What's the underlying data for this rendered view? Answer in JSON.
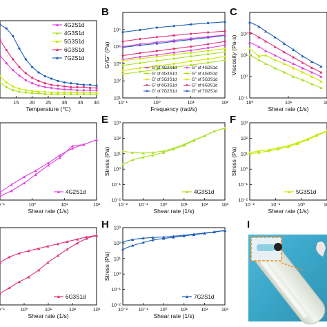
{
  "figure": {
    "background": "#ffffff",
    "panel_labels": [
      "B",
      "C",
      "E",
      "F",
      "H",
      "I"
    ]
  },
  "colors": {
    "4G2S1d": "#e040e0",
    "4G3S1d": "#a8e020",
    "5G3S1d": "#c8e800",
    "6G3S1d": "#e0307a",
    "7G2S1d": "#1f5fb8"
  },
  "chart_data": [
    {
      "id": "A",
      "type": "line",
      "xlabel": "Temperature (℃)",
      "ylabel": "",
      "xlim": [
        10,
        40
      ],
      "xticks": [
        "15",
        "20",
        "25",
        "30",
        "35",
        "40"
      ],
      "legend": [
        "4G2S1d",
        "4G3S1d",
        "5G3S1d",
        "6G3S1d",
        "7G2S1d"
      ],
      "legend_position": "top-right",
      "series": [
        {
          "name": "4G2S1d",
          "x": [
            10,
            12,
            14,
            16,
            18,
            20,
            22,
            24,
            26,
            28,
            30,
            32,
            34,
            36,
            38,
            40
          ],
          "values": [
            0.55,
            0.45,
            0.36,
            0.29,
            0.23,
            0.19,
            0.16,
            0.14,
            0.13,
            0.12,
            0.11,
            0.11,
            0.1,
            0.1,
            0.1,
            0.1
          ]
        },
        {
          "name": "4G3S1d",
          "x": [
            10,
            12,
            14,
            16,
            18,
            20,
            22,
            24,
            26,
            28,
            30,
            32,
            34,
            36,
            38,
            40
          ],
          "values": [
            0.2,
            0.14,
            0.1,
            0.08,
            0.07,
            0.06,
            0.06,
            0.05,
            0.05,
            0.05,
            0.05,
            0.05,
            0.05,
            0.05,
            0.05,
            0.05
          ]
        },
        {
          "name": "5G3S1d",
          "x": [
            10,
            12,
            14,
            16,
            18,
            20,
            22,
            24,
            26,
            28,
            30,
            32,
            34,
            36,
            38,
            40
          ],
          "values": [
            0.28,
            0.2,
            0.15,
            0.12,
            0.1,
            0.09,
            0.08,
            0.08,
            0.07,
            0.07,
            0.07,
            0.07,
            0.07,
            0.07,
            0.07,
            0.07
          ]
        },
        {
          "name": "6G3S1d",
          "x": [
            10,
            12,
            14,
            16,
            18,
            20,
            22,
            24,
            26,
            28,
            30,
            32,
            34,
            36,
            38,
            40
          ],
          "values": [
            0.75,
            0.62,
            0.5,
            0.4,
            0.32,
            0.26,
            0.22,
            0.19,
            0.17,
            0.16,
            0.15,
            0.14,
            0.14,
            0.14,
            0.13,
            0.13
          ]
        },
        {
          "name": "7G2S1d",
          "x": [
            10,
            12,
            14,
            16,
            18,
            20,
            22,
            24,
            26,
            28,
            30,
            32,
            34,
            36,
            38,
            40
          ],
          "values": [
            0.95,
            0.9,
            0.8,
            0.64,
            0.5,
            0.4,
            0.33,
            0.28,
            0.25,
            0.22,
            0.2,
            0.19,
            0.18,
            0.17,
            0.17,
            0.16
          ]
        }
      ]
    },
    {
      "id": "B",
      "type": "line",
      "xlabel": "Frequency (rad/s)",
      "ylabel": "G'/G'' (Pa)",
      "xscale": "log",
      "yscale": "log",
      "xlim": [
        0.1,
        100
      ],
      "ylim": [
        10,
        1000000
      ],
      "xticks": [
        "10⁻¹",
        "10⁰",
        "10¹",
        "10²"
      ],
      "yticks": [
        "10¹",
        "10²",
        "10³",
        "10⁴",
        "10⁵"
      ],
      "legend": [
        "G' of 4G2S1d",
        "G'' of 4G2S1d",
        "G' of 4G3S1d",
        "G'' of 4G3S1d",
        "G' of 5G3S1d",
        "G'' of 5G3S1d",
        "G' of 6G3S1d",
        "G'' of 6G3S1d",
        "G' of 7G2S1d",
        "G'' of 7G2S1d"
      ],
      "legend_position": "bottom",
      "series": [
        {
          "name": "G' of 7G2S1d",
          "x": [
            0.1,
            0.32,
            1,
            3.2,
            10,
            32,
            100
          ],
          "values": [
            70000,
            95000,
            130000,
            160000,
            200000,
            240000,
            280000
          ]
        },
        {
          "name": "G'' of 7G2S1d",
          "x": [
            0.1,
            0.32,
            1,
            3.2,
            10,
            32,
            100
          ],
          "values": [
            9000,
            12000,
            15000,
            20000,
            26000,
            34000,
            45000
          ]
        },
        {
          "name": "G' of 6G3S1d",
          "x": [
            0.1,
            0.32,
            1,
            3.2,
            10,
            32,
            100
          ],
          "values": [
            20000,
            28000,
            36000,
            45000,
            56000,
            68000,
            80000
          ]
        },
        {
          "name": "G'' of 6G3S1d",
          "x": [
            0.1,
            0.32,
            1,
            3.2,
            10,
            32,
            100
          ],
          "values": [
            3000,
            4200,
            5600,
            7500,
            10000,
            14000,
            20000
          ]
        },
        {
          "name": "G' of 4G2S1d",
          "x": [
            0.1,
            0.32,
            1,
            3.2,
            10,
            32,
            100
          ],
          "values": [
            10000,
            14000,
            18000,
            23000,
            30000,
            38000,
            48000
          ]
        },
        {
          "name": "G'' of 4G2S1d",
          "x": [
            0.1,
            0.32,
            1,
            3.2,
            10,
            32,
            100
          ],
          "values": [
            1800,
            2500,
            3300,
            4500,
            6000,
            8500,
            12000
          ]
        },
        {
          "name": "G' of 5G3S1d",
          "x": [
            0.1,
            0.32,
            1,
            3.2,
            10,
            32,
            100
          ],
          "values": [
            1500,
            2000,
            2600,
            3400,
            4400,
            5800,
            7500
          ]
        },
        {
          "name": "G'' of 5G3S1d",
          "x": [
            0.1,
            0.32,
            1,
            3.2,
            10,
            32,
            100
          ],
          "values": [
            400,
            560,
            750,
            1000,
            1400,
            1900,
            2600
          ]
        },
        {
          "name": "G' of 4G3S1d",
          "x": [
            0.1,
            0.32,
            1,
            3.2,
            10,
            32,
            100
          ],
          "values": [
            800,
            1100,
            1500,
            2000,
            2700,
            3600,
            4800
          ]
        },
        {
          "name": "G'' of 4G3S1d",
          "x": [
            0.1,
            0.32,
            1,
            3.2,
            10,
            32,
            100
          ],
          "values": [
            250,
            340,
            460,
            620,
            850,
            1150,
            1600
          ]
        }
      ]
    },
    {
      "id": "C",
      "type": "line",
      "xlabel": "Shear rate (1/s)",
      "ylabel": "Viscosity (Pa·s)",
      "xscale": "log",
      "yscale": "log",
      "xlim": [
        0.3,
        100
      ],
      "ylim": [
        0.1,
        1000
      ],
      "xticks": [
        "10⁰",
        "10¹",
        "10²"
      ],
      "yticks": [
        "10⁻¹",
        "10⁰",
        "10¹",
        "10²"
      ],
      "series": [
        {
          "name": "7G2S1d",
          "x": [
            0.3,
            0.6,
            1,
            2,
            4,
            8,
            16,
            32,
            64
          ],
          "values": [
            350,
            220,
            130,
            70,
            35,
            18,
            9,
            5,
            3
          ]
        },
        {
          "name": "6G3S1d",
          "x": [
            0.3,
            0.6,
            1,
            2,
            4,
            8,
            16,
            32,
            64
          ],
          "values": [
            120,
            70,
            45,
            25,
            14,
            8,
            4.5,
            2.6,
            1.6
          ]
        },
        {
          "name": "4G2S1d",
          "x": [
            0.3,
            0.6,
            1,
            2,
            4,
            8,
            16,
            32,
            64
          ],
          "values": [
            40,
            25,
            16,
            10,
            6,
            4,
            2.5,
            1.6,
            1.0
          ]
        },
        {
          "name": "5G3S1d",
          "x": [
            0.3,
            0.6,
            1,
            2,
            4,
            8,
            16,
            32,
            64
          ],
          "values": [
            20,
            9,
            10,
            6,
            4,
            2.5,
            1.6,
            1.0,
            0.6
          ]
        },
        {
          "name": "4G3S1d",
          "x": [
            0.3,
            0.6,
            1,
            2,
            4,
            8,
            16,
            32,
            64
          ],
          "values": [
            10,
            6,
            4,
            2.5,
            1.6,
            1.0,
            0.7,
            0.45,
            0.3
          ]
        }
      ]
    },
    {
      "id": "D",
      "type": "line",
      "xlabel": "Shear rate (1/s)",
      "ylabel": "",
      "xscale": "log",
      "xlim": [
        0.01,
        100
      ],
      "xticks": [
        "10⁻¹",
        "10⁰",
        "10¹",
        "10²"
      ],
      "legend": [
        "4G2S1d"
      ],
      "legend_position": "bottom-right",
      "series": [
        {
          "name": "4G2S1d up",
          "x": [
            0.01,
            0.03,
            0.1,
            0.3,
            1,
            3,
            10,
            30,
            100
          ],
          "values": [
            0.05,
            0.12,
            0.22,
            0.33,
            0.45,
            0.55,
            0.7,
            0.72,
            0.78
          ]
        },
        {
          "name": "4G2S1d down",
          "x": [
            0.01,
            0.03,
            0.1,
            0.3,
            1,
            3,
            10,
            30,
            100
          ],
          "values": [
            0.1,
            0.2,
            0.3,
            0.38,
            0.48,
            0.58,
            0.67,
            0.72,
            0.78
          ]
        }
      ]
    },
    {
      "id": "E",
      "type": "line",
      "xlabel": "Shear rate (1/s)",
      "ylabel": "Stress (Pa)",
      "xscale": "log",
      "yscale": "log",
      "xlim": [
        0.01,
        1000
      ],
      "ylim": [
        0.01,
        1000
      ],
      "xticks": [
        "10⁻²",
        "10⁻¹",
        "10⁰",
        "10¹",
        "10²",
        "10³"
      ],
      "yticks": [
        "10⁻²",
        "10⁻¹",
        "10⁰",
        "10¹",
        "10²",
        "10³"
      ],
      "legend": [
        "4G3S1d"
      ],
      "legend_position": "bottom-right",
      "series": [
        {
          "name": "4G3S1d up",
          "x": [
            0.01,
            0.03,
            0.1,
            0.3,
            1,
            3,
            10,
            30,
            100,
            300,
            1000
          ],
          "values": [
            2,
            4,
            6,
            8,
            12,
            20,
            35,
            70,
            140,
            280,
            450
          ]
        },
        {
          "name": "4G3S1d down",
          "x": [
            0.01,
            0.03,
            0.1,
            0.3,
            1,
            3,
            10,
            30,
            100,
            300,
            1000
          ],
          "values": [
            14,
            12,
            11,
            12,
            15,
            22,
            40,
            75,
            145,
            285,
            450
          ]
        }
      ]
    },
    {
      "id": "F",
      "type": "line",
      "xlabel": "Shear rate (1/s)",
      "ylabel": "Stress (Pa)",
      "xscale": "log",
      "yscale": "log",
      "xlim": [
        0.01,
        100
      ],
      "ylim": [
        0.01,
        1000
      ],
      "xticks": [
        "10⁻²",
        "10⁻¹",
        "10⁰",
        "10¹"
      ],
      "yticks": [
        "10⁻²",
        "10⁻¹",
        "10⁰",
        "10¹",
        "10²",
        "10³"
      ],
      "legend": [
        "5G3S1d"
      ],
      "legend_position": "bottom-right",
      "series": [
        {
          "name": "5G3S1d up",
          "x": [
            0.01,
            0.03,
            0.1,
            0.3,
            1,
            3,
            10,
            30,
            100
          ],
          "values": [
            10,
            12,
            15,
            20,
            28,
            45,
            80,
            150,
            280
          ]
        },
        {
          "name": "5G3S1d down",
          "x": [
            0.01,
            0.03,
            0.1,
            0.3,
            1,
            3,
            10,
            30,
            100
          ],
          "values": [
            12,
            15,
            18,
            24,
            33,
            52,
            90,
            170,
            300
          ]
        }
      ]
    },
    {
      "id": "G",
      "type": "line",
      "xlabel": "Shear rate (1/s)",
      "ylabel": "",
      "xscale": "log",
      "xlim": [
        0.01,
        1000
      ],
      "xticks": [
        "10⁻¹",
        "10⁰",
        "10¹",
        "10²",
        "10³"
      ],
      "legend": [
        "6G3S1d"
      ],
      "legend_position": "bottom-right",
      "series": [
        {
          "name": "6G3S1d up",
          "x": [
            0.01,
            0.03,
            0.1,
            0.3,
            1,
            3,
            10,
            30,
            100,
            300,
            1000
          ],
          "values": [
            0.15,
            0.22,
            0.3,
            0.36,
            0.45,
            0.55,
            0.64,
            0.72,
            0.8,
            0.86,
            0.9
          ]
        },
        {
          "name": "6G3S1d down",
          "x": [
            0.01,
            0.03,
            0.1,
            0.3,
            1,
            3,
            10,
            30,
            100,
            300,
            1000
          ],
          "values": [
            0.55,
            0.62,
            0.67,
            0.7,
            0.73,
            0.76,
            0.79,
            0.82,
            0.85,
            0.88,
            0.9
          ]
        }
      ]
    },
    {
      "id": "H",
      "type": "line",
      "xlabel": "Shear rate (1/s)",
      "ylabel": "Stress (Pa)",
      "xscale": "log",
      "yscale": "log",
      "xlim": [
        0.01,
        1000
      ],
      "ylim": [
        0.01,
        1000
      ],
      "xticks": [
        "10⁻²",
        "10⁻¹",
        "10⁰",
        "10¹",
        "10²",
        "10³"
      ],
      "yticks": [
        "10⁻²",
        "10⁻¹",
        "10⁰",
        "10¹",
        "10²",
        "10³"
      ],
      "legend": [
        "7G2S1d"
      ],
      "legend_position": "bottom-right",
      "series": [
        {
          "name": "7G2S1d up",
          "x": [
            0.01,
            0.03,
            0.1,
            0.3,
            1,
            3,
            10,
            30,
            100,
            300,
            1000
          ],
          "values": [
            40,
            70,
            110,
            160,
            200,
            240,
            290,
            350,
            430,
            520,
            650
          ]
        },
        {
          "name": "7G2S1d down",
          "x": [
            0.01,
            0.03,
            0.1,
            0.3,
            1,
            3,
            10,
            30,
            100,
            300,
            1000
          ],
          "values": [
            120,
            170,
            210,
            230,
            250,
            280,
            320,
            380,
            450,
            540,
            660
          ]
        }
      ]
    }
  ]
}
